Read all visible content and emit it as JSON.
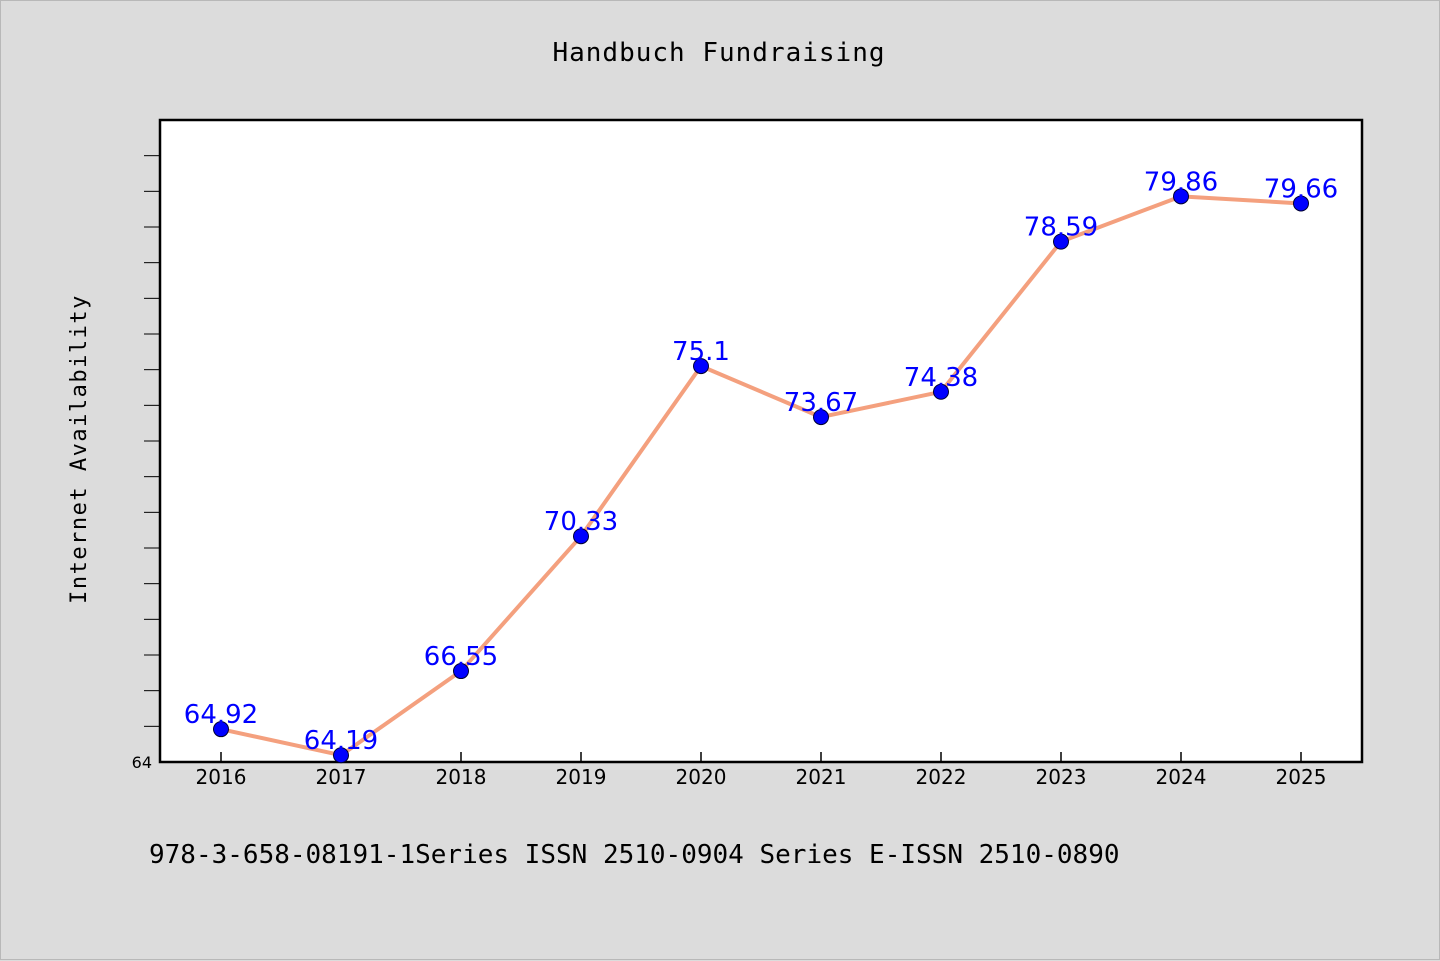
{
  "colors": {
    "background": "#dcdcdc",
    "plot_background": "#ffffff",
    "line": "#f4a07e",
    "marker": "#0000ff",
    "label": "#0000ff"
  },
  "footer": {
    "text": "978-3-658-08191-1Series ISSN 2510-0904 Series E-ISSN 2510-0890"
  },
  "chart_data": {
    "type": "line",
    "title": "Handbuch Fundraising",
    "xlabel": "",
    "ylabel": "Internet Availability",
    "categories": [
      "2016",
      "2017",
      "2018",
      "2019",
      "2020",
      "2021",
      "2022",
      "2023",
      "2024",
      "2025"
    ],
    "series": [
      {
        "values": [
          64.92,
          64.19,
          66.55,
          70.33,
          75.1,
          73.67,
          74.38,
          78.59,
          79.86,
          79.66
        ],
        "labels": [
          "64.92",
          "64.19",
          "66.55",
          "70.33",
          "75.1",
          "73.67",
          "74.38",
          "78.59",
          "79.86",
          "79.66"
        ]
      }
    ],
    "ylim": [
      64,
      82
    ],
    "y_tick_labels": [
      "64"
    ],
    "grid": false,
    "legend": "none"
  }
}
